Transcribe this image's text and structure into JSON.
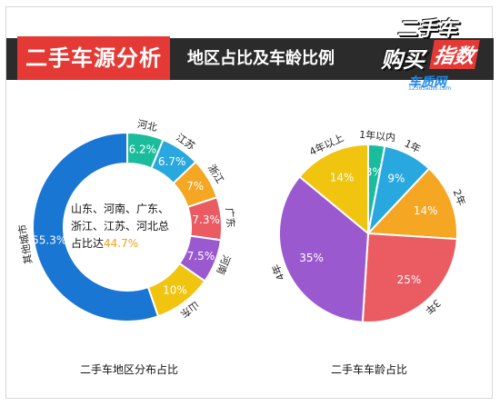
{
  "header": {
    "title": "二手车源分析",
    "subtitle": "地区占比及车龄比例"
  },
  "logo": {
    "line1": "二手车",
    "line2_left": "购买",
    "line2_right": "指数",
    "sub": "车质网",
    "url": "12365auto.com"
  },
  "colors": {
    "header_bg": "#2b2b2b",
    "accent_red": "#e53935"
  },
  "chart_data": [
    {
      "type": "pie",
      "variant": "donut",
      "title": "二手车地区分布占比",
      "center_label_text": "山东、河南、广东、浙江、江苏、河北总占比达",
      "center_label_value": "44.7%",
      "slices": [
        {
          "label": "河北",
          "value": 6.2,
          "display": "6.2%",
          "color": "#1abc9c"
        },
        {
          "label": "江苏",
          "value": 6.7,
          "display": "6.7%",
          "color": "#29a8e0"
        },
        {
          "label": "浙江",
          "value": 7.0,
          "display": "7%",
          "color": "#f5a623"
        },
        {
          "label": "广东",
          "value": 7.3,
          "display": "7.3%",
          "color": "#ea5b62"
        },
        {
          "label": "河南",
          "value": 7.5,
          "display": "7.5%",
          "color": "#9b59d0"
        },
        {
          "label": "山东",
          "value": 10.0,
          "display": "10%",
          "color": "#f1c40f"
        },
        {
          "label": "其他城市",
          "value": 55.3,
          "display": "55.3%",
          "color": "#1976d2"
        }
      ]
    },
    {
      "type": "pie",
      "title": "二手车车龄占比",
      "slices": [
        {
          "label": "1年以内",
          "value": 3,
          "display": "3%",
          "color": "#1abc9c"
        },
        {
          "label": "1年",
          "value": 9,
          "display": "9%",
          "color": "#29a8e0"
        },
        {
          "label": "2年",
          "value": 14,
          "display": "14%",
          "color": "#f5a623"
        },
        {
          "label": "3年",
          "value": 25,
          "display": "25%",
          "color": "#ea5b62"
        },
        {
          "label": "4年",
          "value": 35,
          "display": "35%",
          "color": "#9b59d0"
        },
        {
          "label": "4年以上",
          "value": 14,
          "display": "14%",
          "color": "#f1c40f"
        }
      ]
    }
  ]
}
